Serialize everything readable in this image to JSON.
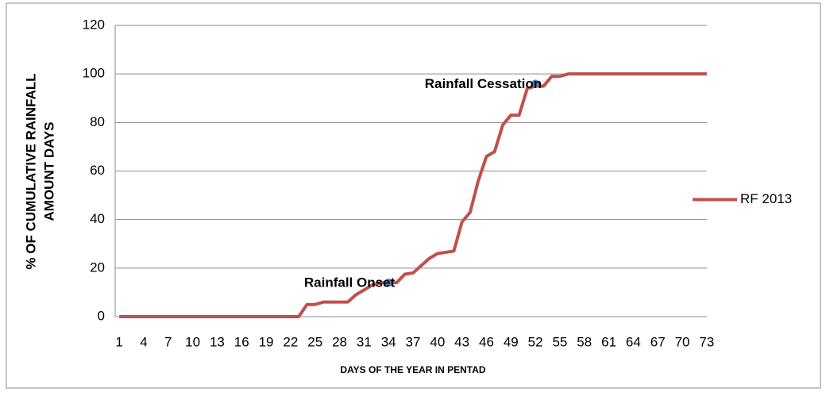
{
  "chart_data": {
    "type": "line",
    "xlabel": "DAYS OF THE YEAR IN PENTAD",
    "ylabel": [
      "% OF CUMULATIVE RAINFALL",
      "AMOUNT DAYS"
    ],
    "categories": [
      1,
      null,
      null,
      4,
      null,
      null,
      7,
      null,
      null,
      10,
      null,
      null,
      13,
      null,
      null,
      16,
      null,
      null,
      19,
      null,
      null,
      22,
      null,
      null,
      25,
      null,
      null,
      28,
      null,
      null,
      31,
      null,
      null,
      34,
      null,
      null,
      37,
      null,
      null,
      40,
      null,
      null,
      43,
      null,
      null,
      46,
      null,
      null,
      49,
      null,
      null,
      52,
      null,
      null,
      55,
      null,
      null,
      58,
      null,
      null,
      61,
      null,
      null,
      64,
      null,
      null,
      67,
      null,
      null,
      70,
      null,
      null,
      73
    ],
    "series": [
      {
        "name": "RF 2013",
        "color": "#c0504d",
        "values": [
          0,
          0,
          0,
          0,
          0,
          0,
          0,
          0,
          0,
          0,
          0,
          0,
          0,
          0,
          0,
          0,
          0,
          0,
          0,
          0,
          0,
          0,
          0,
          5,
          5,
          6,
          6,
          6,
          6,
          9,
          11,
          13,
          14,
          14,
          14,
          17.5,
          18,
          21,
          24,
          26,
          26.5,
          27,
          39,
          43,
          56,
          66,
          68,
          79,
          83,
          83,
          94,
          95,
          95,
          99,
          99,
          100,
          100,
          100,
          100,
          100,
          100,
          100,
          100,
          100,
          100,
          100,
          100,
          100,
          100,
          100,
          100,
          100,
          100
        ]
      }
    ],
    "annotations": [
      {
        "text": "Rainfall Onset",
        "x": 34,
        "y": 14,
        "color": "#4f81bd"
      },
      {
        "text": "Rainfall Cessation",
        "x": 52,
        "y": 96,
        "color": "#4f81bd"
      }
    ],
    "ylim": [
      0,
      120
    ],
    "yticks": [
      0,
      20,
      40,
      60,
      80,
      100,
      120
    ],
    "grid": true,
    "legend": "right"
  }
}
